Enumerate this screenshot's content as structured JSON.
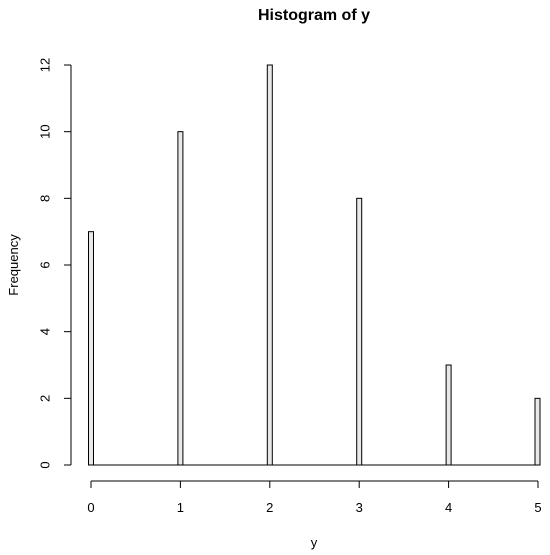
{
  "chart_data": {
    "type": "bar",
    "title": "Histogram of y",
    "xlabel": "y",
    "ylabel": "Frequency",
    "x": [
      0,
      1,
      2,
      3,
      4,
      5
    ],
    "values": [
      7,
      10,
      12,
      8,
      3,
      2
    ],
    "xlim": [
      0,
      5
    ],
    "ylim": [
      0,
      12
    ],
    "xticks": [
      0,
      1,
      2,
      3,
      4,
      5
    ],
    "yticks": [
      0,
      2,
      4,
      6,
      8,
      10,
      12
    ],
    "bar_fill": "#e8e8e8",
    "grid": false
  }
}
